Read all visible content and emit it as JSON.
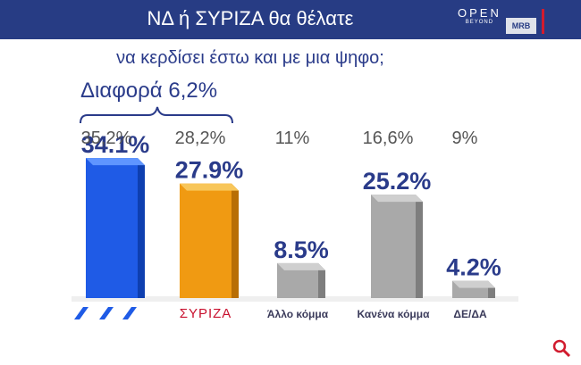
{
  "header": {
    "title": "ΝΔ  ή ΣΥΡΙΖΑ θα θέλατε",
    "logo_open": "OPEN",
    "logo_open_sub": "BEYOND",
    "logo_mrb": "MRB"
  },
  "subtitle": "να κερδίσει έστω και με μια ψηφο;",
  "difference_label": "Διαφορά 6,2%",
  "colors": {
    "header_bg": "#273c84",
    "text": "#2a3b8a",
    "nd": "#1f5be6",
    "syriza": "#f09a12",
    "other": "#a9a9a9",
    "accent": "#d11b2e"
  },
  "chart_data": {
    "type": "bar",
    "title": "ΝΔ  ή ΣΥΡΙΖΑ θα θέλατε να κερδίσει έστω και με μια ψηφο;",
    "categories": [
      "ΝΔ",
      "ΣΥΡΙΖΑ",
      "Άλλο κόμμα",
      "Κανένα κόμμα",
      "ΔΕ/ΔΑ"
    ],
    "values": [
      34.1,
      27.9,
      8.5,
      25.2,
      4.2
    ],
    "value_labels": [
      "34.1%",
      "27.9%",
      "8.5%",
      "25.2%",
      "4.2%"
    ],
    "previous_labels": [
      "35,2%",
      "28,2%",
      "11%",
      "16,6%",
      "9%"
    ],
    "axis_labels": [
      "",
      "",
      "Άλλο κόμμα",
      "Κανένα κόμμα",
      "ΔΕ/ΔΑ"
    ],
    "logo_icons": [
      "nd-logo-icon",
      "syriza-logo-icon"
    ],
    "logo_text_syriza": "ΣΥΡΙΖΑ",
    "ylim": [
      0,
      40
    ],
    "grid": false,
    "legend": "none"
  }
}
